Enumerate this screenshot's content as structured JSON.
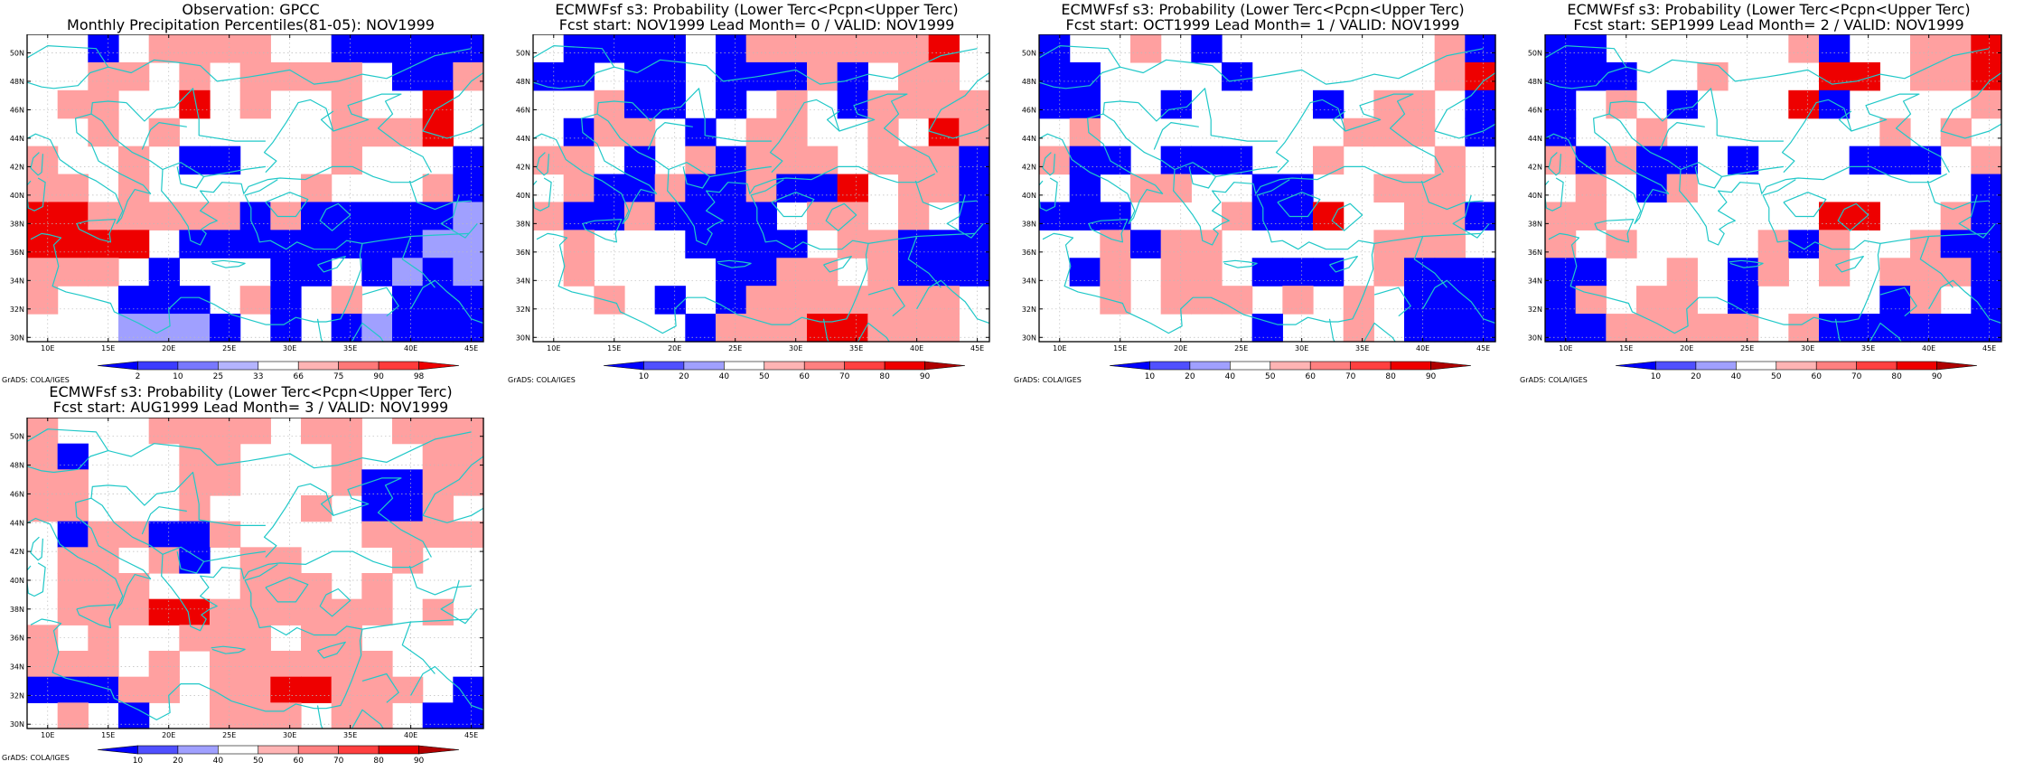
{
  "palette": {
    "blue_dark": "#0000ff",
    "blue_mid": "#5a5aff",
    "blue_light": "#a0a0ff",
    "red_light": "#ffa0a0",
    "red_mid": "#ff5a5a",
    "red_dark": "#ee0000",
    "coast": "#20c8c8",
    "grid": "#bbbbbb"
  },
  "credit": "GrADS: COLA/IGES",
  "x_ticks": [
    "10E",
    "15E",
    "20E",
    "25E",
    "30E",
    "35E",
    "40E",
    "45E"
  ],
  "y_ticks": [
    "50N",
    "48N",
    "46N",
    "44N",
    "42N",
    "40N",
    "38N",
    "36N",
    "34N",
    "32N",
    "30N"
  ],
  "panels": [
    {
      "id": "obs",
      "title1": "Observation: GPCC",
      "title2": "Monthly Precipitation Percentiles(81-05): NOV1999",
      "colorbar_labels": [
        "2",
        "10",
        "25",
        "33",
        "66",
        "75",
        "90",
        "98"
      ],
      "colorbar_colors": [
        "#0000ff",
        "#3c3cff",
        "#7878ff",
        "#b4b4ff",
        "#ffffff",
        "#ffb4b4",
        "#ff7878",
        "#ff3c3c",
        "#ee0000"
      ],
      "grid": [
        "00B0RRRR00BBBBB",
        "00RR0R0RRRR0BBR",
        "0RR00D0R00R00D0",
        "00R0R00000RRRD0",
        "R00R0BB000R000B",
        "RR0R00000R000RB",
        "DDRRRRRBRBBBBBb",
        "DDDD0BBBBBBBBbb",
        "RRR0B000BB0BbBb",
        "R00BBB0RB0R0BBB",
        "000bbbB0B0BbBBB"
      ]
    },
    {
      "id": "f0",
      "title1": "ECMWFsf s3: Probability (Lower Terc<Pcpn<Upper Terc)",
      "title2": "Fcst start: NOV1999  Lead Month= 0 / VALID: NOV1999",
      "colorbar_labels": [
        "10",
        "20",
        "40",
        "50",
        "60",
        "70",
        "80",
        "90"
      ],
      "colorbar_colors": [
        "#0000ff",
        "#5050ff",
        "#a0a0ff",
        "#ffffff",
        "#ffb4b4",
        "#ff8080",
        "#ff4040",
        "#ee0000",
        "#b00000"
      ],
      "grid": [
        "0BBBB0BRRRRRRD0",
        "BB0BB0BBBRB0RR0",
        "00RBB0B0R0BRRRR",
        "0BRR0B0RR00R0DR",
        "RR0B0RBRRR0RRRB",
        "0RBBRBBRBBD0RRB",
        "RBBRBBBB0RR0R0B",
        "0R000BBBB0RRBBB",
        "0R0000BBRR0RBBB",
        "00R0B0BRRRRRRR0",
        "00000BRRRDDRRR0"
      ]
    },
    {
      "id": "f1",
      "title1": "ECMWFsf s3: Probability (Lower Terc<Pcpn<Upper Terc)",
      "title2": "Fcst start: OCT1999  Lead Month= 1 / VALID: NOV1999",
      "colorbar_labels": [
        "10",
        "20",
        "40",
        "50",
        "60",
        "70",
        "80",
        "90"
      ],
      "colorbar_colors": [
        "#0000ff",
        "#5050ff",
        "#a0a0ff",
        "#ffffff",
        "#ffb4b4",
        "#ff8080",
        "#ff4040",
        "#ee0000",
        "#b00000"
      ],
      "grid": [
        "B00R0B0000000RB",
        "BB0000B000000RD",
        "BB00B0000B0RR0B",
        "0R00000000RRR0B",
        "RBB0BBB00R000R0",
        "0B0RR00BB00RRR0",
        "BBB000RBBD00RRB",
        "00RBRR00000RRR0",
        "0BR0RR0BBB0RBBB",
        "00R0RRR0R0R0BBB",
        "0000000B00R0BBB"
      ]
    },
    {
      "id": "f2",
      "title1": "ECMWFsf s3: Probability (Lower Terc<Pcpn<Upper Terc)",
      "title2": "Fcst start: SEP1999  Lead Month= 2 / VALID: NOV1999",
      "colorbar_labels": [
        "10",
        "20",
        "40",
        "50",
        "60",
        "70",
        "80",
        "90"
      ],
      "colorbar_colors": [
        "#0000ff",
        "#5050ff",
        "#a0a0ff",
        "#ffffff",
        "#ffb4b4",
        "#ff8080",
        "#ff4040",
        "#ee0000",
        "#b00000"
      ],
      "grid": [
        "BB000000RB00RRD",
        "BBB00R000DD0RRD",
        "B0R0B000DB0000R",
        "B00R0000000R0R0",
        "RBRBB0B000BBB0R",
        "0R0BR000000000B",
        "RR0000000DD00RB",
        "R0R0000RBR00RBB",
        "BB00R0BR0R0RRRB",
        "BR0RR0B0000BR0B",
        "BBRRRRR0RBBBBBB"
      ]
    },
    {
      "id": "f3",
      "title1": "ECMWFsf s3: Probability (Lower Terc<Pcpn<Upper Terc)",
      "title2": "Fcst start: AUG1999  Lead Month= 3 / VALID: NOV1999",
      "colorbar_labels": [
        "10",
        "20",
        "40",
        "50",
        "60",
        "70",
        "80",
        "90"
      ],
      "colorbar_colors": [
        "#0000ff",
        "#5050ff",
        "#a0a0ff",
        "#ffffff",
        "#ffb4b4",
        "#ff8080",
        "#ff4040",
        "#ee0000",
        "#b00000"
      ],
      "grid": [
        "R000RRRR0RR0RRR",
        "RB000RR000R00RR",
        "RR000RR000RBBRR",
        "RR000R000R0BBR0",
        "0BRRBBR0000RRRR",
        "0RR0RB0RR000R00",
        "0RRR000RRR0R000",
        "0RRRDDRRRRRR0R0",
        "R0R00RRR0RR0000",
        "RRR0R0RRRRRR000",
        "BBBRR0RRDDRRR0B",
        "0R0B00RRR0RR0BB"
      ]
    }
  ]
}
